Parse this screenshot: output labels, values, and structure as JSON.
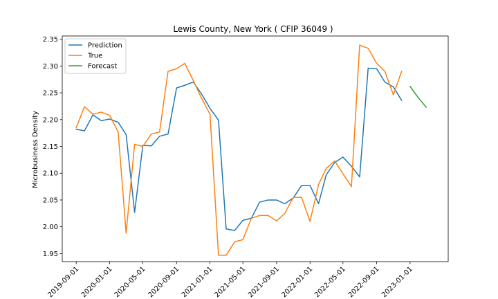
{
  "chart_data": {
    "type": "line",
    "title": "Lewis County, New York ( CFIP 36049 )",
    "xlabel": "",
    "ylabel": "Microbusiness Density",
    "ylim": [
      1.935,
      2.356
    ],
    "xlim": [
      "2019-07-12",
      "2023-05-20"
    ],
    "grid": false,
    "legend": "upper-left",
    "y_ticks": [
      "1.95",
      "2.00",
      "2.05",
      "2.10",
      "2.15",
      "2.20",
      "2.25",
      "2.30",
      "2.35"
    ],
    "x_ticks": [
      "2019-09-01",
      "2020-01-01",
      "2020-05-01",
      "2020-09-01",
      "2021-01-01",
      "2021-05-01",
      "2021-09-01",
      "2022-01-01",
      "2022-05-01",
      "2022-09-01",
      "2023-01-01"
    ],
    "series": [
      {
        "name": "Prediction",
        "color": "#1f77b4",
        "points": [
          [
            "2019-09-01",
            2.182
          ],
          [
            "2019-10-01",
            2.179
          ],
          [
            "2019-11-01",
            2.209
          ],
          [
            "2019-12-01",
            2.198
          ],
          [
            "2020-01-01",
            2.201
          ],
          [
            "2020-02-01",
            2.195
          ],
          [
            "2020-03-01",
            2.172
          ],
          [
            "2020-04-01",
            2.027
          ],
          [
            "2020-05-01",
            2.152
          ],
          [
            "2020-06-01",
            2.151
          ],
          [
            "2020-07-01",
            2.169
          ],
          [
            "2020-08-01",
            2.173
          ],
          [
            "2020-09-01",
            2.259
          ],
          [
            "2020-10-01",
            2.264
          ],
          [
            "2020-11-01",
            2.27
          ],
          [
            "2020-12-01",
            2.248
          ],
          [
            "2021-01-01",
            2.221
          ],
          [
            "2021-02-01",
            2.199
          ],
          [
            "2021-03-01",
            1.996
          ],
          [
            "2021-04-01",
            1.993
          ],
          [
            "2021-05-01",
            2.012
          ],
          [
            "2021-06-01",
            2.016
          ],
          [
            "2021-07-01",
            2.046
          ],
          [
            "2021-08-01",
            2.05
          ],
          [
            "2021-09-01",
            2.05
          ],
          [
            "2021-10-01",
            2.043
          ],
          [
            "2021-11-01",
            2.054
          ],
          [
            "2021-12-01",
            2.077
          ],
          [
            "2022-01-01",
            2.077
          ],
          [
            "2022-02-01",
            2.043
          ],
          [
            "2022-03-01",
            2.097
          ],
          [
            "2022-04-01",
            2.12
          ],
          [
            "2022-05-01",
            2.13
          ],
          [
            "2022-06-01",
            2.113
          ],
          [
            "2022-07-01",
            2.093
          ],
          [
            "2022-08-01",
            2.296
          ],
          [
            "2022-09-01",
            2.295
          ],
          [
            "2022-10-01",
            2.27
          ],
          [
            "2022-11-01",
            2.261
          ],
          [
            "2022-12-01",
            2.236
          ]
        ]
      },
      {
        "name": "True",
        "color": "#ff7f0e",
        "points": [
          [
            "2019-09-01",
            2.185
          ],
          [
            "2019-10-01",
            2.224
          ],
          [
            "2019-11-01",
            2.21
          ],
          [
            "2019-12-01",
            2.214
          ],
          [
            "2020-01-01",
            2.208
          ],
          [
            "2020-02-01",
            2.177
          ],
          [
            "2020-03-01",
            1.988
          ],
          [
            "2020-04-01",
            2.154
          ],
          [
            "2020-05-01",
            2.15
          ],
          [
            "2020-06-01",
            2.173
          ],
          [
            "2020-07-01",
            2.177
          ],
          [
            "2020-08-01",
            2.29
          ],
          [
            "2020-09-01",
            2.295
          ],
          [
            "2020-10-01",
            2.305
          ],
          [
            "2020-11-01",
            2.273
          ],
          [
            "2020-12-01",
            2.24
          ],
          [
            "2021-01-01",
            2.21
          ],
          [
            "2021-02-01",
            1.947
          ],
          [
            "2021-03-01",
            1.947
          ],
          [
            "2021-04-01",
            1.972
          ],
          [
            "2021-05-01",
            1.976
          ],
          [
            "2021-06-01",
            2.016
          ],
          [
            "2021-07-01",
            2.021
          ],
          [
            "2021-08-01",
            2.021
          ],
          [
            "2021-09-01",
            2.011
          ],
          [
            "2021-10-01",
            2.025
          ],
          [
            "2021-11-01",
            2.055
          ],
          [
            "2021-12-01",
            2.055
          ],
          [
            "2022-01-01",
            2.01
          ],
          [
            "2022-02-01",
            2.079
          ],
          [
            "2022-03-01",
            2.109
          ],
          [
            "2022-04-01",
            2.123
          ],
          [
            "2022-05-01",
            2.099
          ],
          [
            "2022-06-01",
            2.075
          ],
          [
            "2022-07-01",
            2.339
          ],
          [
            "2022-08-01",
            2.333
          ],
          [
            "2022-09-01",
            2.305
          ],
          [
            "2022-10-01",
            2.29
          ],
          [
            "2022-11-01",
            2.246
          ],
          [
            "2022-12-01",
            2.29
          ]
        ]
      },
      {
        "name": "Forecast",
        "color": "#2ca02c",
        "points": [
          [
            "2023-01-01",
            2.262
          ],
          [
            "2023-02-01",
            2.24
          ],
          [
            "2023-03-01",
            2.223
          ]
        ]
      }
    ]
  }
}
